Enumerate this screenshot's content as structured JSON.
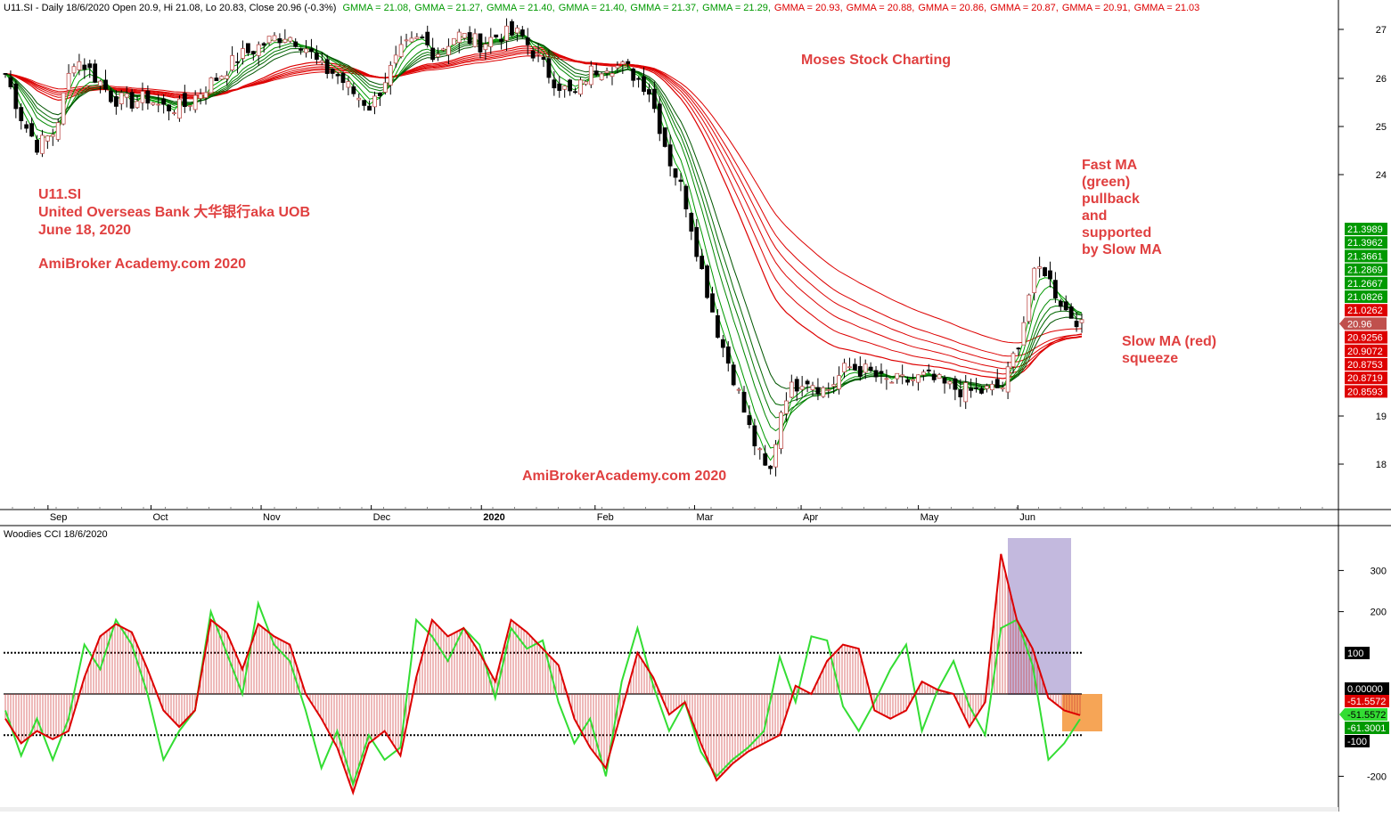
{
  "header": {
    "prefix": "U11.SI - Daily 18/6/2020 Open 20.9, Hi 21.08, Lo 20.83, Close 20.96 (-0.3%)",
    "gmma_items": [
      {
        "text": "GMMA = 21.08,",
        "color": "#009900"
      },
      {
        "text": "GMMA = 21.27,",
        "color": "#009900"
      },
      {
        "text": "GMMA = 21.40,",
        "color": "#009900"
      },
      {
        "text": "GMMA = 21.40,",
        "color": "#009900"
      },
      {
        "text": "GMMA = 21.37,",
        "color": "#009900"
      },
      {
        "text": "GMMA = 21.29,",
        "color": "#009900"
      },
      {
        "text": "GMMA = 20.93,",
        "color": "#dd0000"
      },
      {
        "text": "GMMA = 20.88,",
        "color": "#dd0000"
      },
      {
        "text": "GMMA = 20.86,",
        "color": "#dd0000"
      },
      {
        "text": "GMMA = 20.87,",
        "color": "#dd0000"
      },
      {
        "text": "GMMA = 20.91,",
        "color": "#dd0000"
      },
      {
        "text": "GMMA = 21.03",
        "color": "#dd0000"
      }
    ]
  },
  "annotations": {
    "ticker": "U11.SI",
    "company": "United Overseas Bank 大华银行aka UOB",
    "date": "June 18, 2020",
    "site_left": "AmiBroker Academy.com  2020",
    "moses": "Moses Stock Charting",
    "site_bottom": "AmiBrokerAcademy.com  2020",
    "fast_ma": [
      "Fast MA",
      "(green)",
      "pullback",
      "and",
      "supported",
      "by Slow MA"
    ],
    "slow_ma": [
      "Slow MA (red)",
      "squeeze"
    ]
  },
  "colors": {
    "candle_up": "#c0504d",
    "fast_ma": "#009900",
    "slow_ma": "#dd0000",
    "cci_red": "#dd0000",
    "cci_green": "#33dd33",
    "highlight_purple": "#b4a7d6",
    "highlight_orange": "#f6a04d",
    "annotation": "#e04040"
  },
  "chart_data": [
    {
      "type": "candlestick",
      "title": "U11.SI - Daily 18/6/2020",
      "x_tick_labels": [
        "Sep",
        "Oct",
        "Nov",
        "Dec",
        "2020",
        "Feb",
        "Mar",
        "Apr",
        "May",
        "Jun"
      ],
      "y_tick_labels": [
        "27",
        "26",
        "25",
        "24",
        "19",
        "18"
      ],
      "ylim": [
        17.2,
        27.6
      ],
      "close_path": [
        {
          "date": "2019-08-21",
          "close": 26.1
        },
        {
          "date": "2019-08-26",
          "close": 25.1
        },
        {
          "date": "2019-08-30",
          "close": 24.6
        },
        {
          "date": "2019-09-04",
          "close": 24.9
        },
        {
          "date": "2019-09-09",
          "close": 26.4
        },
        {
          "date": "2019-09-12",
          "close": 26.3
        },
        {
          "date": "2019-09-17",
          "close": 25.9
        },
        {
          "date": "2019-09-20",
          "close": 25.6
        },
        {
          "date": "2019-09-25",
          "close": 25.5
        },
        {
          "date": "2019-09-30",
          "close": 25.6
        },
        {
          "date": "2019-10-04",
          "close": 25.4
        },
        {
          "date": "2019-10-10",
          "close": 25.4
        },
        {
          "date": "2019-10-16",
          "close": 25.8
        },
        {
          "date": "2019-10-21",
          "close": 26.1
        },
        {
          "date": "2019-10-25",
          "close": 26.4
        },
        {
          "date": "2019-10-30",
          "close": 26.6
        },
        {
          "date": "2019-11-04",
          "close": 26.8
        },
        {
          "date": "2019-11-08",
          "close": 26.9
        },
        {
          "date": "2019-11-13",
          "close": 26.7
        },
        {
          "date": "2019-11-18",
          "close": 26.2
        },
        {
          "date": "2019-11-22",
          "close": 26.1
        },
        {
          "date": "2019-11-27",
          "close": 25.7
        },
        {
          "date": "2019-12-02",
          "close": 25.4
        },
        {
          "date": "2019-12-06",
          "close": 26.0
        },
        {
          "date": "2019-12-11",
          "close": 26.6
        },
        {
          "date": "2019-12-16",
          "close": 26.8
        },
        {
          "date": "2019-12-20",
          "close": 26.5
        },
        {
          "date": "2019-12-26",
          "close": 26.9
        },
        {
          "date": "2020-01-02",
          "close": 26.7
        },
        {
          "date": "2020-01-07",
          "close": 26.9
        },
        {
          "date": "2020-01-13",
          "close": 26.9
        },
        {
          "date": "2020-01-17",
          "close": 26.5
        },
        {
          "date": "2020-01-22",
          "close": 26.0
        },
        {
          "date": "2020-01-28",
          "close": 25.6
        },
        {
          "date": "2020-02-01",
          "close": 26.1
        },
        {
          "date": "2020-02-06",
          "close": 26.3
        },
        {
          "date": "2020-02-12",
          "close": 26.2
        },
        {
          "date": "2020-02-18",
          "close": 25.8
        },
        {
          "date": "2020-02-24",
          "close": 24.3
        },
        {
          "date": "2020-02-28",
          "close": 23.6
        },
        {
          "date": "2020-03-04",
          "close": 22.0
        },
        {
          "date": "2020-03-09",
          "close": 20.6
        },
        {
          "date": "2020-03-13",
          "close": 19.8
        },
        {
          "date": "2020-03-18",
          "close": 18.6
        },
        {
          "date": "2020-03-23",
          "close": 17.7
        },
        {
          "date": "2020-03-27",
          "close": 19.4
        },
        {
          "date": "2020-04-02",
          "close": 19.8
        },
        {
          "date": "2020-04-08",
          "close": 19.5
        },
        {
          "date": "2020-04-14",
          "close": 20.0
        },
        {
          "date": "2020-04-20",
          "close": 19.9
        },
        {
          "date": "2020-04-24",
          "close": 19.7
        },
        {
          "date": "2020-04-30",
          "close": 19.7
        },
        {
          "date": "2020-05-06",
          "close": 19.8
        },
        {
          "date": "2020-05-12",
          "close": 19.6
        },
        {
          "date": "2020-05-18",
          "close": 19.5
        },
        {
          "date": "2020-05-22",
          "close": 19.5
        },
        {
          "date": "2020-05-28",
          "close": 19.6
        },
        {
          "date": "2020-06-02",
          "close": 20.7
        },
        {
          "date": "2020-06-05",
          "close": 21.8
        },
        {
          "date": "2020-06-08",
          "close": 22.1
        },
        {
          "date": "2020-06-11",
          "close": 21.6
        },
        {
          "date": "2020-06-15",
          "close": 21.1
        },
        {
          "date": "2020-06-18",
          "close": 20.96
        }
      ],
      "gmma_fast": [
        21.08,
        21.27,
        21.4,
        21.4,
        21.37,
        21.29
      ],
      "gmma_slow": [
        20.93,
        20.88,
        20.86,
        20.87,
        20.91,
        21.03
      ],
      "right_labels": [
        {
          "text": "21.3989",
          "value": 21.3989,
          "color": "#009900"
        },
        {
          "text": "21.3962",
          "value": 21.3962,
          "color": "#009900"
        },
        {
          "text": "21.3661",
          "value": 21.3661,
          "color": "#009900"
        },
        {
          "text": "21.2869",
          "value": 21.2869,
          "color": "#009900"
        },
        {
          "text": "21.2667",
          "value": 21.2667,
          "color": "#009900"
        },
        {
          "text": "21.0826",
          "value": 21.0826,
          "color": "#009900"
        },
        {
          "text": "21.0262",
          "value": 21.0262,
          "color": "#dd0000"
        },
        {
          "text": "20.96",
          "value": 20.96,
          "color": "#c0504d"
        },
        {
          "text": "20.9256",
          "value": 20.9256,
          "color": "#dd0000"
        },
        {
          "text": "20.9072",
          "value": 20.9072,
          "color": "#dd0000"
        },
        {
          "text": "20.8753",
          "value": 20.8753,
          "color": "#dd0000"
        },
        {
          "text": "20.8719",
          "value": 20.8719,
          "color": "#dd0000"
        },
        {
          "text": "20.8593",
          "value": 20.8593,
          "color": "#dd0000"
        }
      ]
    },
    {
      "type": "line",
      "title": "Woodies CCI  18/6/2020",
      "y_tick_labels": [
        "300",
        "200",
        "100",
        "0.00000",
        "-100",
        "-200"
      ],
      "ylim": [
        -280,
        380
      ],
      "reference_lines": [
        100,
        0,
        -100
      ],
      "series": [
        {
          "color": "#dd0000",
          "values": [
            -60,
            -120,
            -90,
            -110,
            -90,
            40,
            140,
            170,
            150,
            60,
            -40,
            -80,
            -40,
            180,
            150,
            60,
            170,
            140,
            120,
            0,
            -60,
            -130,
            -240,
            -120,
            -90,
            -150,
            40,
            180,
            140,
            160,
            100,
            30,
            180,
            150,
            110,
            70,
            -60,
            -130,
            -180,
            -40,
            100,
            40,
            -50,
            -20,
            -120,
            -210,
            -170,
            -140,
            -120,
            -100,
            20,
            0,
            80,
            120,
            110,
            -40,
            -60,
            -40,
            30,
            10,
            0,
            -80,
            -20,
            340,
            180,
            110,
            -10,
            -40,
            -51.5572
          ]
        },
        {
          "color": "#33dd33",
          "values": [
            -40,
            -150,
            -60,
            -160,
            -60,
            120,
            60,
            180,
            120,
            0,
            -160,
            -90,
            -40,
            200,
            100,
            0,
            220,
            120,
            80,
            -40,
            -180,
            -90,
            -220,
            -100,
            -160,
            -130,
            180,
            140,
            80,
            160,
            120,
            -10,
            160,
            110,
            130,
            -20,
            -120,
            -60,
            -200,
            30,
            160,
            20,
            -90,
            -20,
            -140,
            -200,
            -160,
            -130,
            -90,
            90,
            -20,
            140,
            130,
            -30,
            -90,
            -20,
            60,
            120,
            -90,
            10,
            80,
            -30,
            -100,
            160,
            180,
            70,
            -160,
            -120,
            -61.3001
          ]
        }
      ],
      "right_labels": [
        {
          "text": "100",
          "value": 100,
          "color": "#000000"
        },
        {
          "text": "0.00000",
          "value": 0,
          "color": "#000000"
        },
        {
          "text": "-51.5572",
          "value": -51.5572,
          "color": "#dd0000"
        },
        {
          "text": "-51.5572",
          "value": -51.5572,
          "color": "#33dd33"
        },
        {
          "text": "-61.3001",
          "value": -61.3001,
          "color": "#009900"
        },
        {
          "text": "-100",
          "value": -100,
          "color": "#000000"
        }
      ]
    }
  ]
}
